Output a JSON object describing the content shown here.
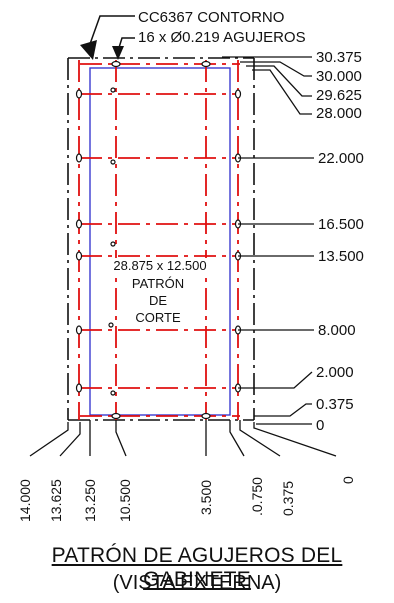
{
  "callouts": {
    "contour": "CC6367 CONTORNO",
    "holes": "16 x Ø0.219 AGUJEROS"
  },
  "cut_pattern": {
    "size": "28.875 x 12.500",
    "line1": "PATRÓN",
    "line2": "DE",
    "line3": "CORTE"
  },
  "vertical_dims": [
    "30.375",
    "30.000",
    "29.625",
    "28.000",
    "22.000",
    "16.500",
    "13.500",
    "8.000",
    "2.000",
    "0.375",
    "0"
  ],
  "horizontal_dims": [
    "14.000",
    "13.625",
    "13.250",
    "10.500",
    "3.500",
    ".0.750",
    "0.375",
    "0"
  ],
  "title": {
    "main": "PATRÓN DE AGUJEROS DEL GABINETE",
    "sub": "(VISTA EXTERNA)"
  },
  "colors": {
    "outline": "#111111",
    "cut_pattern": "#3a3ad0",
    "centerlines": "#e01010"
  }
}
